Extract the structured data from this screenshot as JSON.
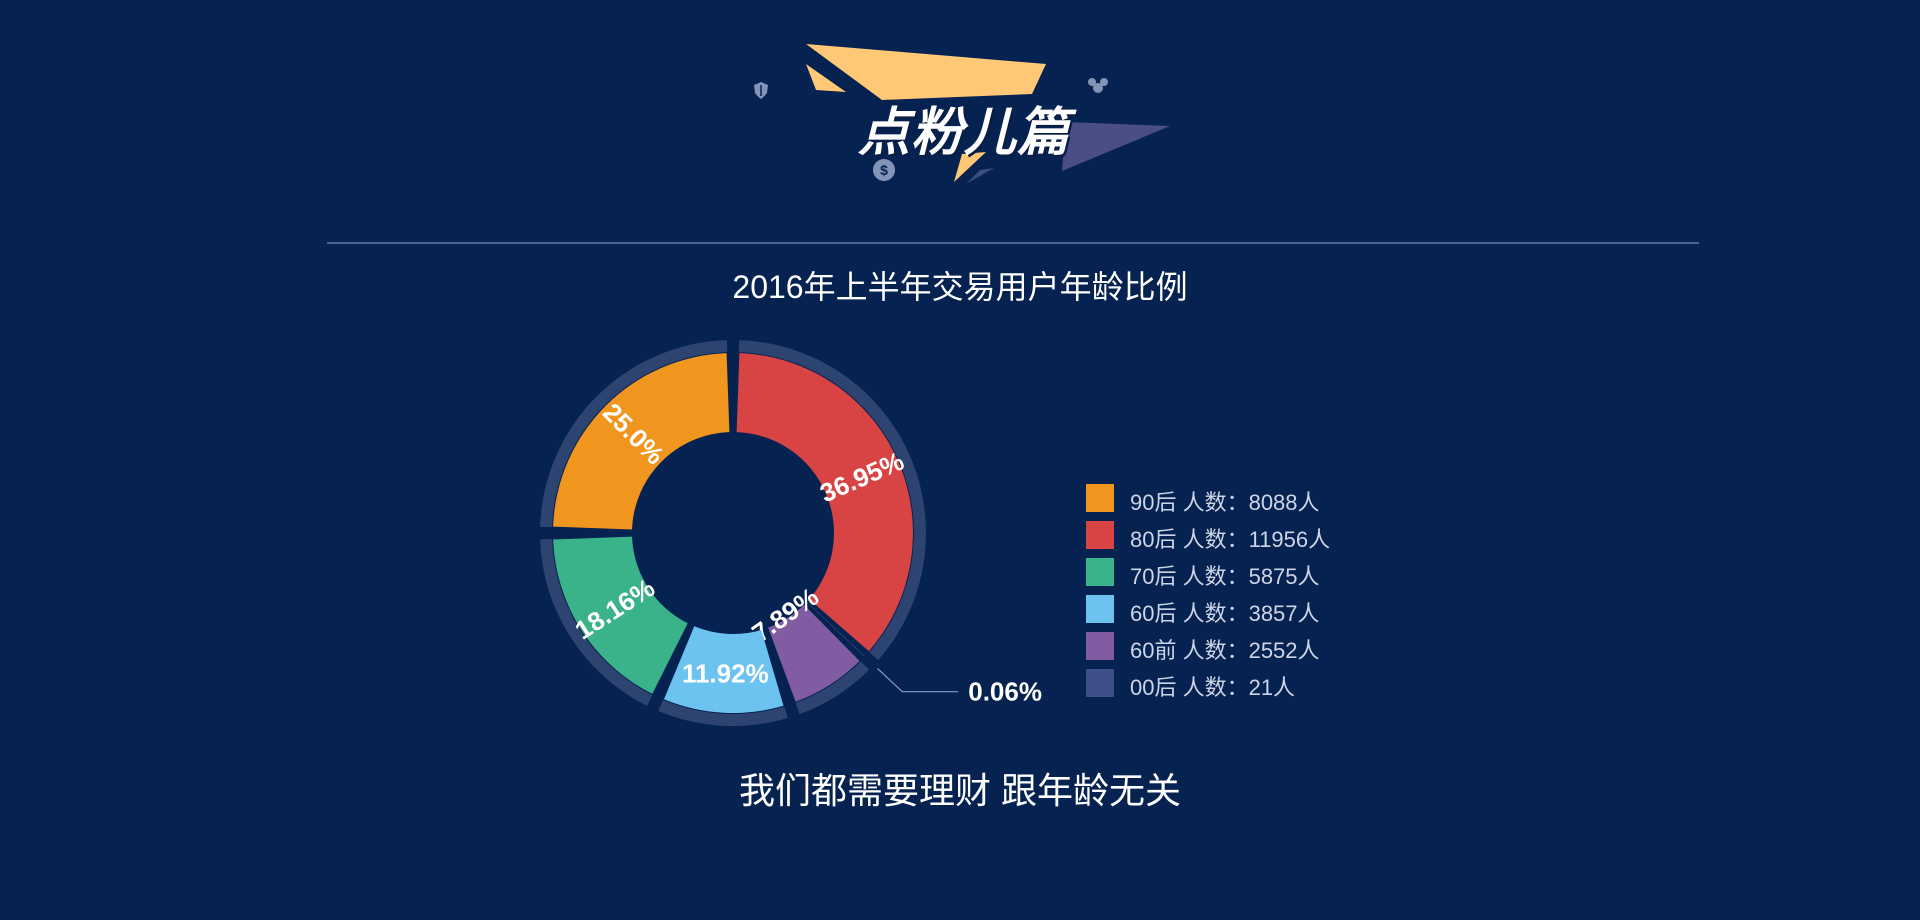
{
  "header": {
    "title": "点粉儿篇"
  },
  "icons": [
    "shield-icon",
    "dollar-coin-icon",
    "people-icon"
  ],
  "colors": {
    "background": "#062251",
    "ring": "#2e4470",
    "banner_yellow": "#ffc876",
    "banner_purple": "#4b4e84"
  },
  "chart_data": {
    "type": "pie",
    "title": "2016年上半年交易用户年龄比例",
    "hole": true,
    "slices": [
      {
        "label": "80后",
        "legend_text": "80后  人数：11956人",
        "count": 11956,
        "percent_label": "36.95%",
        "value": 36.95,
        "color": "#d84444"
      },
      {
        "label": "00后",
        "legend_text": "00后  人数：21人",
        "count": 21,
        "percent_label": "0.06%",
        "value": 0.06,
        "color": "#3d4f86"
      },
      {
        "label": "60前",
        "legend_text": "60前  人数：2552人",
        "count": 2552,
        "percent_label": "7.89%",
        "value": 7.89,
        "color": "#825ca3"
      },
      {
        "label": "60后",
        "legend_text": "60后  人数：3857人",
        "count": 3857,
        "percent_label": "11.92%",
        "value": 11.92,
        "color": "#6cc3ef"
      },
      {
        "label": "70后",
        "legend_text": "70后  人数：5875人",
        "count": 5875,
        "percent_label": "18.16%",
        "value": 18.16,
        "color": "#3bb38a"
      },
      {
        "label": "90后",
        "legend_text": "90后  人数：8088人",
        "count": 8088,
        "percent_label": "25.0%",
        "value": 25.0,
        "color": "#f0951e"
      }
    ],
    "legend_order": [
      "90后",
      "80后",
      "70后",
      "60后",
      "60前",
      "00后"
    ],
    "legend_position": "right"
  },
  "footer": {
    "text": "我们都需要理财 跟年龄无关"
  }
}
